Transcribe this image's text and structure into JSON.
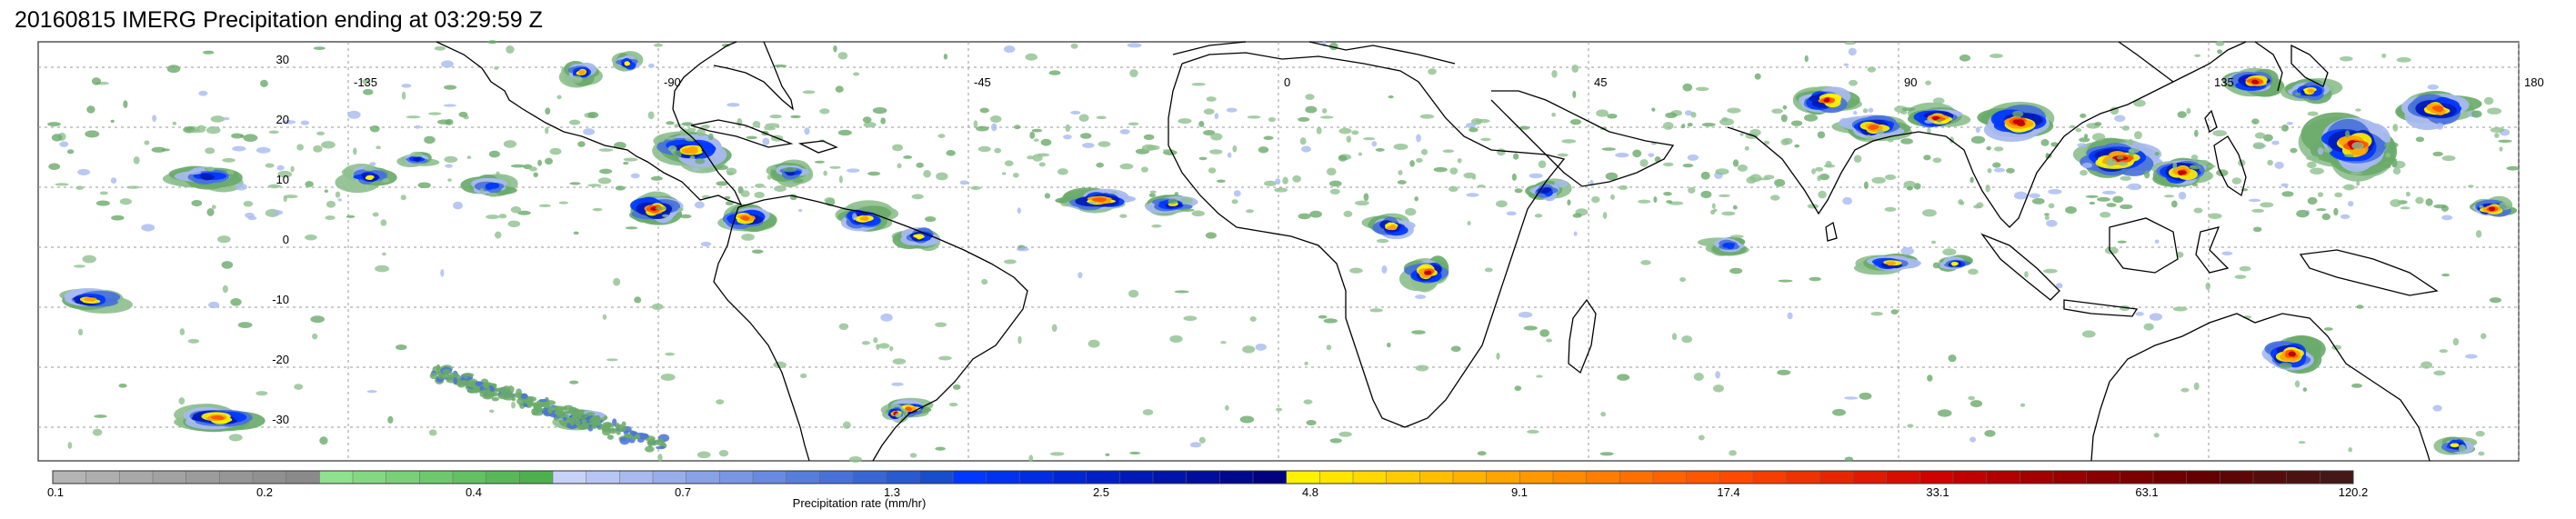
{
  "title": "20160815 IMERG Precipitation ending at 03:29:59 Z",
  "map": {
    "lon_ticks": [
      "-135",
      "-90",
      "-45",
      "0",
      "45",
      "90",
      "135",
      "180"
    ],
    "lat_ticks": [
      "30",
      "20",
      "10",
      "0",
      "-10",
      "-20",
      "-30"
    ],
    "grid": true,
    "land_outline_color": "#000000",
    "gridline_color": "#9a9a9a"
  },
  "colorbar": {
    "label": "Precipitation rate (mm/hr)",
    "tick_labels": [
      "0.1",
      "0.2",
      "0.4",
      "0.7",
      "1.3",
      "2.5",
      "4.8",
      "9.1",
      "17.4",
      "33.1",
      "63.1",
      "120.2"
    ],
    "colors": [
      "#b4b4b4",
      "#aeaeae",
      "#a8a8a8",
      "#a2a2a2",
      "#9c9c9c",
      "#969696",
      "#909090",
      "#8a8a8a",
      "#8fe08f",
      "#84d884",
      "#79d079",
      "#6ec86e",
      "#63c063",
      "#58b858",
      "#4db04d",
      "#c8d2f8",
      "#b8c6f4",
      "#a8baf0",
      "#98aeec",
      "#88a2e8",
      "#7896e4",
      "#688ae0",
      "#587edc",
      "#4872d8",
      "#3866d4",
      "#285ad0",
      "#184ecc",
      "#0038ff",
      "#0032f0",
      "#002ce2",
      "#0026d4",
      "#0020c6",
      "#001ab8",
      "#0014aa",
      "#000e9c",
      "#00088e",
      "#000280",
      "#fff200",
      "#ffe500",
      "#ffd800",
      "#ffcb00",
      "#ffbe00",
      "#ffb100",
      "#ffa400",
      "#ff9700",
      "#ff8a00",
      "#ff7d00",
      "#ff7000",
      "#ff6300",
      "#ff5600",
      "#fc4a00",
      "#f53e00",
      "#ee3200",
      "#e62600",
      "#de1a00",
      "#d60e00",
      "#ce0200",
      "#c00000",
      "#b20000",
      "#a40000",
      "#960000",
      "#880000",
      "#7c0000",
      "#700000",
      "#640000",
      "#5c0606",
      "#540c0c",
      "#4c1212",
      "#441818"
    ]
  }
}
